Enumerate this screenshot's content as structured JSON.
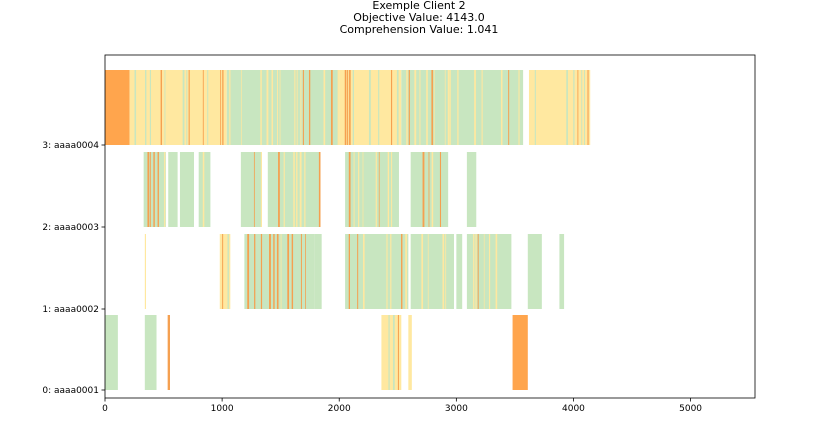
{
  "chart_data": {
    "type": "gantt",
    "title_lines": [
      "Exemple Client 2",
      "Objective Value: 4143.0",
      "Comprehension Value: 1.041"
    ],
    "xlim": [
      0,
      5550
    ],
    "x_ticks": [
      0,
      1000,
      2000,
      3000,
      4000,
      5000
    ],
    "x_tick_labels": [
      "0",
      "1000",
      "2000",
      "3000",
      "4000",
      "5000"
    ],
    "y_tick_labels": [
      "0: aaaa0001",
      "1: aaaa0002",
      "2: aaaa0003",
      "3: aaaa0004"
    ],
    "palette": {
      "green": "#c8e6c0",
      "yellow": "#ffe8a0",
      "orange": "#f5a050",
      "dark_orange": "#ffa54d",
      "gray": "#cccccc",
      "frame": "#000000"
    },
    "resources": [
      {
        "label": "0: aaaa0001",
        "blocks": [
          {
            "start": 0,
            "end": 110,
            "pattern": "green"
          },
          {
            "start": 340,
            "end": 440,
            "pattern": "green"
          },
          {
            "start": 535,
            "end": 555,
            "pattern": "orange"
          },
          {
            "start": 2360,
            "end": 2530,
            "pattern": "yellow_mix"
          },
          {
            "start": 2590,
            "end": 2620,
            "pattern": "yellow_mix"
          },
          {
            "start": 3480,
            "end": 3610,
            "pattern": "dark_orange"
          }
        ]
      },
      {
        "label": "1: aaaa0002",
        "blocks": [
          {
            "start": 340,
            "end": 350,
            "pattern": "yellow"
          },
          {
            "start": 980,
            "end": 1070,
            "pattern": "yellow_mix"
          },
          {
            "start": 1190,
            "end": 1790,
            "pattern": "green_dense"
          },
          {
            "start": 1790,
            "end": 1850,
            "pattern": "gray_mix"
          },
          {
            "start": 2050,
            "end": 2590,
            "pattern": "green_mix"
          },
          {
            "start": 2610,
            "end": 2980,
            "pattern": "green_mix"
          },
          {
            "start": 3000,
            "end": 3050,
            "pattern": "green"
          },
          {
            "start": 3090,
            "end": 3470,
            "pattern": "green_mix"
          },
          {
            "start": 3610,
            "end": 3730,
            "pattern": "green"
          },
          {
            "start": 3880,
            "end": 3920,
            "pattern": "green"
          }
        ]
      },
      {
        "label": "2: aaaa0003",
        "blocks": [
          {
            "start": 330,
            "end": 520,
            "pattern": "orange_mix"
          },
          {
            "start": 540,
            "end": 620,
            "pattern": "orange_mix"
          },
          {
            "start": 640,
            "end": 760,
            "pattern": "orange_mix"
          },
          {
            "start": 800,
            "end": 900,
            "pattern": "orange_mix"
          },
          {
            "start": 1160,
            "end": 1340,
            "pattern": "gray_mix"
          },
          {
            "start": 1390,
            "end": 1840,
            "pattern": "green_mix"
          },
          {
            "start": 2050,
            "end": 2510,
            "pattern": "green_mix"
          },
          {
            "start": 2610,
            "end": 2930,
            "pattern": "green_mix"
          },
          {
            "start": 3090,
            "end": 3170,
            "pattern": "orange_mix"
          }
        ]
      },
      {
        "label": "3: aaaa0004",
        "blocks": [
          {
            "start": 0,
            "end": 210,
            "pattern": "dark_orange"
          },
          {
            "start": 210,
            "end": 1040,
            "pattern": "yellow_mix"
          },
          {
            "start": 1040,
            "end": 2000,
            "pattern": "green_mix"
          },
          {
            "start": 2000,
            "end": 2530,
            "pattern": "yellow_mix"
          },
          {
            "start": 2530,
            "end": 3570,
            "pattern": "green_mix"
          },
          {
            "start": 3620,
            "end": 4143,
            "pattern": "yellow_mix"
          }
        ]
      }
    ]
  }
}
